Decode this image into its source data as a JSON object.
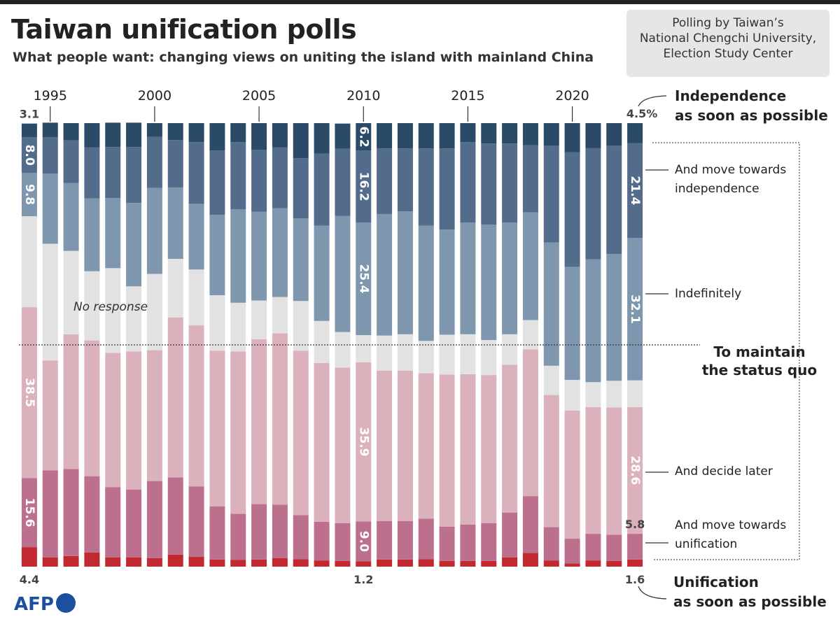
{
  "chart_data": {
    "type": "stacked_bar",
    "title": "Taiwan unification polls",
    "subtitle": "What people want: changing views on uniting the island with mainland China",
    "note": "Polling by Taiwan’s\nNational Chengchi University,\nElection Study Center",
    "logo": "AFP",
    "group_label": "To maintain\nthe status quo",
    "x": [
      1994,
      1995,
      1996,
      1997,
      1998,
      1999,
      2000,
      2001,
      2002,
      2003,
      2004,
      2005,
      2006,
      2007,
      2008,
      2009,
      2010,
      2011,
      2012,
      2013,
      2014,
      2015,
      2016,
      2017,
      2018,
      2019,
      2020,
      2021,
      2022,
      2023
    ],
    "xlim": [
      1993.5,
      2023.5
    ],
    "xticks": [
      1995,
      2000,
      2005,
      2010,
      2015,
      2020
    ],
    "ylim": [
      0,
      100
    ],
    "reference_line": 50,
    "series": [
      {
        "name": "Unification\nas soon as possible",
        "color": "#c1282f",
        "values": [
          4.4,
          2.1,
          2.4,
          3.2,
          2.1,
          2.1,
          1.9,
          2.7,
          2.2,
          1.6,
          1.5,
          1.6,
          1.9,
          1.7,
          1.4,
          1.3,
          1.2,
          1.6,
          1.6,
          1.7,
          1.3,
          1.3,
          1.3,
          2.1,
          3.1,
          1.4,
          0.7,
          1.4,
          1.3,
          1.6
        ],
        "value_labels": [
          "4.4",
          null,
          null,
          null,
          null,
          null,
          null,
          null,
          null,
          null,
          null,
          null,
          null,
          null,
          null,
          null,
          "1.2",
          null,
          null,
          null,
          null,
          null,
          null,
          null,
          null,
          null,
          null,
          null,
          null,
          "1.6"
        ]
      },
      {
        "name": "And move towards\nunification",
        "color": "#bd6f8e",
        "values": [
          15.6,
          19.6,
          19.6,
          17.2,
          15.8,
          15.3,
          17.4,
          17.4,
          15.9,
          12.0,
          10.4,
          12.5,
          12.1,
          9.9,
          8.7,
          8.5,
          9.0,
          8.7,
          8.7,
          9.1,
          7.7,
          8.2,
          8.5,
          10.1,
          12.8,
          7.5,
          5.6,
          6.0,
          5.9,
          5.8
        ],
        "value_labels": [
          "15.6",
          null,
          null,
          null,
          null,
          null,
          null,
          null,
          null,
          null,
          null,
          null,
          null,
          null,
          null,
          null,
          "9.0",
          null,
          null,
          null,
          null,
          null,
          null,
          null,
          null,
          null,
          null,
          null,
          null,
          "5.8"
        ]
      },
      {
        "name": "And decide later",
        "color": "#dbb1bc",
        "values": [
          38.5,
          24.8,
          30.4,
          30.6,
          30.3,
          31.1,
          29.5,
          36.1,
          36.3,
          35.1,
          36.6,
          37.2,
          38.6,
          37.1,
          35.8,
          35.1,
          35.9,
          33.9,
          33.9,
          32.8,
          34.3,
          33.9,
          33.4,
          33.3,
          33.1,
          29.8,
          28.9,
          28.6,
          28.7,
          28.6
        ],
        "value_labels": [
          "38.5",
          null,
          null,
          null,
          null,
          null,
          null,
          null,
          null,
          null,
          null,
          null,
          null,
          null,
          null,
          null,
          "35.9",
          null,
          null,
          null,
          null,
          null,
          null,
          null,
          null,
          null,
          null,
          null,
          null,
          "28.6"
        ]
      },
      {
        "name": "No response",
        "color": "#e2e2e2",
        "values": [
          20.5,
          26.3,
          18.8,
          15.6,
          19.1,
          14.7,
          17.2,
          13.2,
          12.6,
          12.5,
          11.0,
          8.7,
          8.2,
          11.2,
          9.5,
          8.0,
          6.1,
          7.9,
          8.2,
          7.3,
          9.0,
          9.0,
          7.9,
          6.9,
          6.6,
          6.6,
          6.9,
          5.6,
          6.0,
          6.0
        ]
      },
      {
        "name": "Indefinitely",
        "color": "#7e97ae",
        "values": [
          9.8,
          15.8,
          15.3,
          16.4,
          15.8,
          18.8,
          19.4,
          16.1,
          14.8,
          18.1,
          21.1,
          20.0,
          20.0,
          18.6,
          21.5,
          26.2,
          25.4,
          27.4,
          27.7,
          26.0,
          23.7,
          25.2,
          26.0,
          25.2,
          24.3,
          27.8,
          25.5,
          27.7,
          28.6,
          32.1
        ],
        "value_labels": [
          "9.8",
          null,
          null,
          null,
          null,
          null,
          null,
          null,
          null,
          null,
          null,
          null,
          null,
          null,
          null,
          null,
          "25.4",
          null,
          null,
          null,
          null,
          null,
          null,
          null,
          null,
          null,
          null,
          null,
          null,
          "32.1"
        ]
      },
      {
        "name": "And move towards\nindependence",
        "color": "#546c8b",
        "values": [
          8.0,
          8.2,
          9.6,
          11.5,
          11.5,
          12.6,
          11.5,
          10.7,
          13.9,
          14.5,
          15.1,
          14.0,
          13.7,
          13.6,
          16.2,
          15.1,
          16.2,
          14.8,
          14.2,
          17.4,
          18.3,
          18.1,
          18.3,
          17.8,
          15.1,
          21.8,
          25.8,
          25.1,
          24.4,
          21.4
        ],
        "value_labels": [
          "8.0",
          null,
          null,
          null,
          null,
          null,
          null,
          null,
          null,
          null,
          null,
          null,
          null,
          null,
          null,
          null,
          "16.2",
          null,
          null,
          null,
          null,
          null,
          null,
          null,
          null,
          null,
          null,
          null,
          null,
          "21.4"
        ]
      },
      {
        "name": "Independence\nas soon as possible",
        "color": "#2b4a67",
        "values": [
          3.1,
          3.3,
          3.9,
          5.5,
          5.5,
          5.5,
          3.1,
          3.8,
          4.3,
          6.2,
          4.3,
          6.0,
          5.5,
          7.9,
          6.9,
          5.7,
          6.2,
          5.7,
          5.7,
          5.7,
          5.7,
          4.3,
          4.6,
          4.6,
          5.0,
          5.1,
          6.6,
          5.6,
          5.1,
          4.5
        ],
        "value_labels": [
          "3.1",
          null,
          null,
          null,
          null,
          null,
          null,
          null,
          null,
          null,
          null,
          null,
          null,
          null,
          null,
          null,
          "6.2",
          null,
          null,
          null,
          null,
          null,
          null,
          null,
          null,
          null,
          null,
          null,
          null,
          "4.5%"
        ]
      }
    ]
  }
}
